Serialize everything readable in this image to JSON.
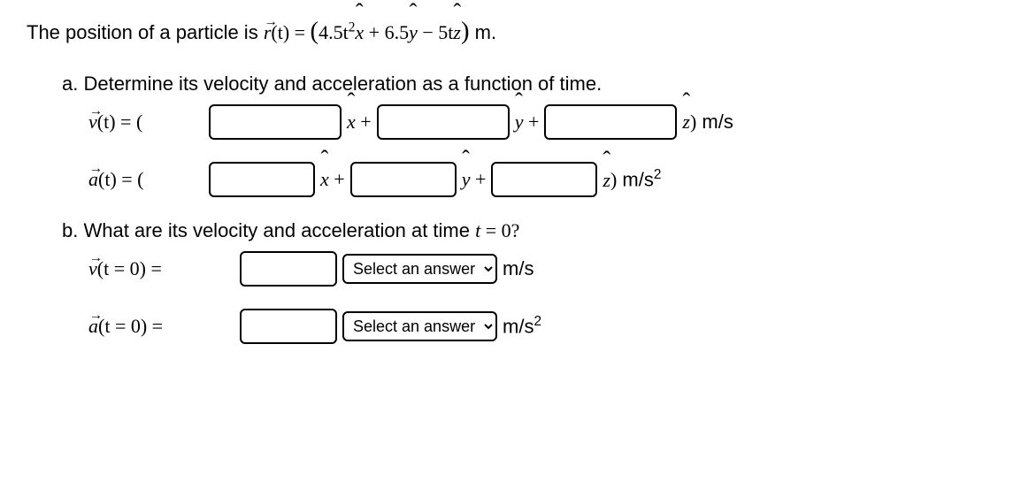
{
  "intro": {
    "prefix": "The position of a particle is ",
    "r": "r",
    "t_arg": "(t) = ",
    "open": "(",
    "coef1": "4.5t",
    "exp1": "2",
    "xhat": "x",
    "plus1": " + ",
    "coef2": "6.5",
    "yhat": "y",
    "minus": " − ",
    "coef3": "5t",
    "zhat": "z",
    "close": ")",
    "unit": "  m."
  },
  "partA": {
    "label": "a. Determine its velocity and acceleration as a function of time.",
    "velocity": {
      "sym": "v",
      "arg": "(t) =  (",
      "xhat": "x",
      "yhat": "y",
      "zhat": "z",
      "plus": " + ",
      "close": ")",
      "unit": " m/s"
    },
    "accel": {
      "sym": "a",
      "arg": "(t) =  (",
      "xhat": "x",
      "yhat": "y",
      "zhat": "z",
      "plus": " + ",
      "close": ")",
      "unit": " m/s",
      "unit_exp": "2"
    }
  },
  "partB": {
    "label_pre": "b. What are its velocity and acceleration at time ",
    "t_var": "t",
    "label_post": " = 0?",
    "velocity": {
      "sym": "v",
      "arg": "(t = 0) = ",
      "unit": " m/s"
    },
    "accel": {
      "sym": "a",
      "arg": "(t = 0) = ",
      "unit": " m/s",
      "unit_exp": "2"
    },
    "select_placeholder": "Select an answer"
  },
  "colors": {
    "text": "#000000",
    "border": "#000000",
    "background": "#ffffff"
  }
}
